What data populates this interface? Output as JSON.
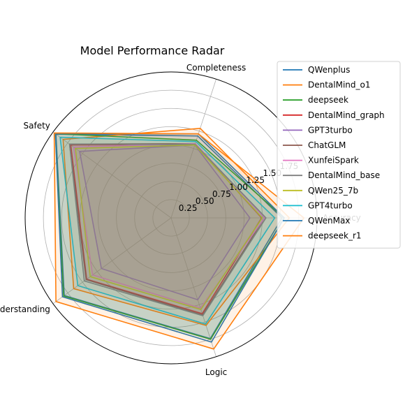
{
  "chart_data": {
    "type": "radar",
    "title": "Model Performance Radar",
    "axes": [
      "Completeness",
      "Safety",
      "Understanding",
      "Logic",
      "Accuracy"
    ],
    "rlim": [
      0,
      2.0
    ],
    "rticks": [
      0.25,
      0.5,
      0.75,
      1.0,
      1.25,
      1.5,
      1.75
    ],
    "rtick_labels": [
      "0.25",
      "0.50",
      "0.75",
      "1.00",
      "1.25",
      "1.50",
      "1.75"
    ],
    "grid": true,
    "legend_position": "top-right",
    "series": [
      {
        "name": "QWenplus",
        "color": "#1f77b4",
        "values": [
          1.18,
          1.95,
          1.81,
          1.74,
          1.52
        ]
      },
      {
        "name": "DentalMind_o1",
        "color": "#ff7f0e",
        "values": [
          1.29,
          1.83,
          1.65,
          1.55,
          1.62
        ]
      },
      {
        "name": "deepseek",
        "color": "#2ca02c",
        "values": [
          1.12,
          1.96,
          1.82,
          1.75,
          1.55
        ]
      },
      {
        "name": "DentalMind_graph",
        "color": "#d62728",
        "values": [
          1.06,
          1.7,
          1.43,
          1.38,
          1.24
        ]
      },
      {
        "name": "GPT3turbo",
        "color": "#9467bd",
        "values": [
          1.05,
          1.55,
          1.18,
          1.18,
          1.08
        ]
      },
      {
        "name": "ChatGLM",
        "color": "#8c564b",
        "values": [
          1.07,
          1.72,
          1.44,
          1.4,
          1.28
        ]
      },
      {
        "name": "XunfeiSpark",
        "color": "#e377c2",
        "values": [
          1.07,
          1.65,
          1.33,
          1.3,
          1.28
        ]
      },
      {
        "name": "DentalMind_base",
        "color": "#7f7f7f",
        "values": [
          1.06,
          1.72,
          1.47,
          1.41,
          1.3
        ]
      },
      {
        "name": "QWen25_7b",
        "color": "#bcbd22",
        "values": [
          1.05,
          1.62,
          1.37,
          1.32,
          1.25
        ]
      },
      {
        "name": "GPT4turbo",
        "color": "#17becf",
        "values": [
          1.1,
          1.88,
          1.58,
          1.53,
          1.42
        ]
      },
      {
        "name": "QWenMax",
        "color": "#1f77b4",
        "values": [
          1.21,
          1.96,
          1.84,
          1.79,
          1.55
        ]
      },
      {
        "name": "deepseek_r1",
        "color": "#ff7f0e",
        "values": [
          1.21,
          1.98,
          1.95,
          1.89,
          1.82
        ]
      }
    ]
  }
}
